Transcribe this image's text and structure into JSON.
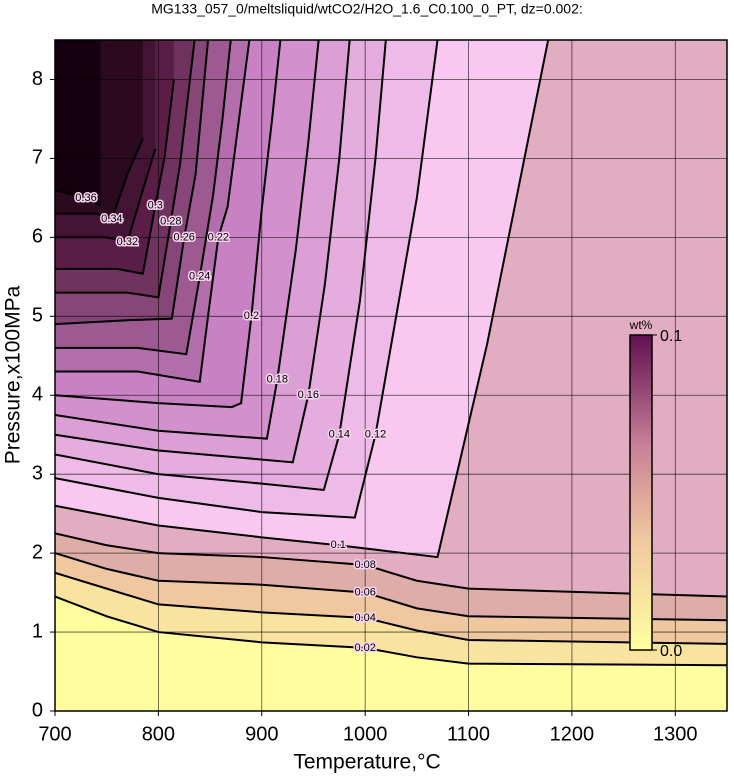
{
  "chart_data": {
    "type": "contour",
    "title": "MG133_057_0/meltsliquid/wtCO2/H2O_1.6_C0.100_0_PT, dz=0.002:",
    "x_label": "Temperature,°C",
    "y_label": "Pressure,x100MPa",
    "xlim": [
      700,
      1350
    ],
    "ylim": [
      0,
      8.5
    ],
    "xticks": [
      700,
      800,
      900,
      1000,
      1100,
      1200,
      1300
    ],
    "yticks": [
      0,
      1,
      2,
      3,
      4,
      5,
      6,
      7,
      8
    ],
    "grid": true,
    "contours": [
      {
        "level": 0.02,
        "x": [
          700,
          750,
          800,
          900,
          1000,
          1050,
          1100,
          1350
        ],
        "y": [
          1.45,
          1.2,
          1.0,
          0.87,
          0.8,
          0.68,
          0.6,
          0.58
        ]
      },
      {
        "level": 0.04,
        "x": [
          700,
          750,
          800,
          900,
          1000,
          1050,
          1100,
          1350
        ],
        "y": [
          1.75,
          1.55,
          1.35,
          1.25,
          1.18,
          1.02,
          0.9,
          0.85
        ]
      },
      {
        "level": 0.06,
        "x": [
          700,
          750,
          800,
          900,
          1000,
          1050,
          1100,
          1350
        ],
        "y": [
          2.0,
          1.8,
          1.65,
          1.6,
          1.5,
          1.3,
          1.2,
          1.15
        ]
      },
      {
        "level": 0.08,
        "x": [
          700,
          750,
          800,
          900,
          1000,
          1050,
          1100,
          1350
        ],
        "y": [
          2.25,
          2.1,
          2.0,
          1.95,
          1.85,
          1.65,
          1.55,
          1.45
        ]
      },
      {
        "level": 0.1,
        "x": [
          700,
          800,
          900,
          974,
          1070,
          1118,
          1177
        ],
        "y": [
          2.6,
          2.35,
          2.2,
          2.1,
          1.95,
          4.65,
          8.5
        ]
      },
      {
        "level": 0.12,
        "x": [
          700,
          800,
          900,
          990,
          1010,
          1030,
          1050,
          1070
        ],
        "y": [
          2.95,
          2.7,
          2.52,
          2.45,
          3.5,
          5.0,
          6.5,
          8.5
        ]
      },
      {
        "level": 0.14,
        "x": [
          700,
          800,
          900,
          960,
          975,
          995,
          1010,
          1020
        ],
        "y": [
          3.25,
          3.0,
          2.88,
          2.8,
          3.5,
          5.2,
          7.0,
          8.5
        ]
      },
      {
        "level": 0.16,
        "x": [
          700,
          800,
          879,
          930,
          945,
          961,
          975,
          985
        ],
        "y": [
          3.5,
          3.3,
          3.21,
          3.15,
          4.0,
          5.4,
          7.0,
          8.5
        ]
      },
      {
        "level": 0.18,
        "x": [
          700,
          800,
          884,
          905,
          915,
          933,
          945,
          955
        ],
        "y": [
          3.75,
          3.55,
          3.47,
          3.45,
          4.2,
          5.85,
          7.2,
          8.5
        ]
      },
      {
        "level": 0.2,
        "x": [
          700,
          800,
          871,
          880,
          890,
          900,
          910,
          918
        ],
        "y": [
          4.0,
          3.9,
          3.85,
          3.9,
          5.0,
          6.36,
          7.5,
          8.5
        ]
      },
      {
        "level": 0.22,
        "x": [
          700,
          780,
          840,
          848,
          858,
          867,
          878,
          888
        ],
        "y": [
          4.3,
          4.3,
          4.17,
          5.0,
          6.0,
          6.39,
          7.5,
          8.5
        ]
      },
      {
        "level": 0.24,
        "x": [
          700,
          780,
          827,
          840,
          853,
          862,
          870
        ],
        "y": [
          4.6,
          4.6,
          4.52,
          5.5,
          6.54,
          7.5,
          8.5
        ]
      },
      {
        "level": 0.26,
        "x": [
          700,
          770,
          813,
          825,
          836,
          848
        ],
        "y": [
          4.9,
          4.95,
          4.97,
          6.0,
          6.8,
          8.5
        ]
      },
      {
        "level": 0.28,
        "x": [
          700,
          770,
          800,
          812,
          821,
          835
        ],
        "y": [
          5.3,
          5.3,
          5.24,
          6.2,
          6.93,
          8.5
        ]
      },
      {
        "level": 0.3,
        "x": [
          700,
          760,
          785,
          797,
          806,
          815
        ],
        "y": [
          5.6,
          5.6,
          5.54,
          6.4,
          7.02,
          8.0
        ]
      },
      {
        "level": 0.32,
        "x": [
          700,
          750,
          770,
          785,
          797
        ],
        "y": [
          6.0,
          6.0,
          5.94,
          6.6,
          7.12
        ]
      },
      {
        "level": 0.34,
        "x": [
          700,
          740,
          755,
          770,
          785
        ],
        "y": [
          6.3,
          6.3,
          6.23,
          6.8,
          7.25
        ]
      },
      {
        "level": 0.36,
        "x": [
          700,
          730,
          744
        ],
        "y": [
          6.6,
          6.5,
          6.4
        ]
      }
    ],
    "colorbar": {
      "title": "wt%",
      "lim": [
        0,
        0.1
      ],
      "ticks": [
        {
          "value": 0,
          "label": "0.0"
        },
        0.1
      ]
    }
  }
}
